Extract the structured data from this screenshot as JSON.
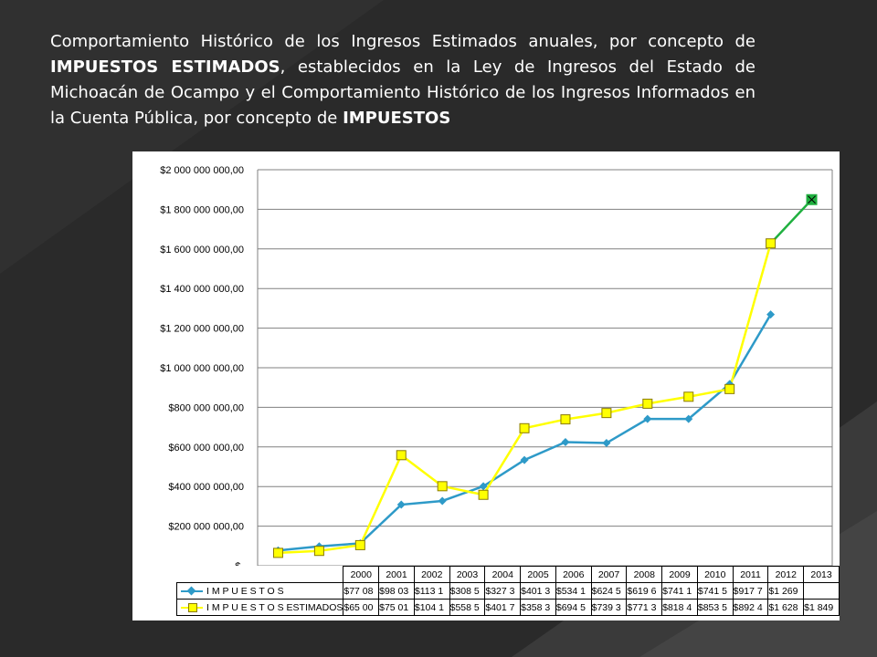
{
  "heading": {
    "part1": "Comportamiento Histórico de los Ingresos Estimados anuales, por concepto de ",
    "bold1": "IMPUESTOS ESTIMADOS",
    "part2": ", establecidos en la Ley de Ingresos del Estado de Michoacán de Ocampo y el Comportamiento Histórico de los Ingresos Informados en la Cuenta Pública, por concepto de ",
    "bold2": "IMPUESTOS"
  },
  "colors": {
    "background": "#2a2a2a",
    "impuestos": "#2e9ac8",
    "estimados": "#ffff00",
    "estimados_marker_edge": "#8a7a00",
    "last_segment": "#20b040"
  },
  "chart_data": {
    "type": "line",
    "categories": [
      "2000",
      "2001",
      "2002",
      "2003",
      "2004",
      "2005",
      "2006",
      "2007",
      "2008",
      "2009",
      "2010",
      "2011",
      "2012",
      "2013"
    ],
    "y_tick_labels": [
      "$-",
      "$200 000 000,00",
      "$400 000 000,00",
      "$600 000 000,00",
      "$800 000 000,00",
      "$1 000 000 000,00",
      "$1 200 000 000,00",
      "$1 400 000 000,00",
      "$1 600 000 000,00",
      "$1 800 000 000,00",
      "$2 000 000 000,00"
    ],
    "ylim": [
      0,
      2000000000
    ],
    "y_step": 200000000,
    "grid": true,
    "legend_placement": "data table below plot",
    "series": [
      {
        "name": "I M P U E S T O S",
        "marker": "diamond",
        "values": [
          77080000,
          98030000,
          113100000,
          308500000,
          327300000,
          401300000,
          534100000,
          624500000,
          619600000,
          741100000,
          741500000,
          917700000,
          1269000000,
          null
        ],
        "table_labels": [
          "$77 08",
          "$98 03",
          "$113 1",
          "$308 5",
          "$327 3",
          "$401 3",
          "$534 1",
          "$624 5",
          "$619 6",
          "$741 1",
          "$741 5",
          "$917 7",
          "$1 269",
          ""
        ]
      },
      {
        "name": "I M P U E S T O S ESTIMADOS",
        "marker": "square",
        "values": [
          65000000,
          75010000,
          104100000,
          558500000,
          401700000,
          358300000,
          694500000,
          739300000,
          771300000,
          818400000,
          853500000,
          892400000,
          1628000000,
          1849000000
        ],
        "table_labels": [
          "$65 00",
          "$75 01",
          "$104 1",
          "$558 5",
          "$401 7",
          "$358 3",
          "$694 5",
          "$739 3",
          "$771 3",
          "$818 4",
          "$853 5",
          "$892 4",
          "$1 628",
          "$1 849"
        ]
      }
    ]
  }
}
